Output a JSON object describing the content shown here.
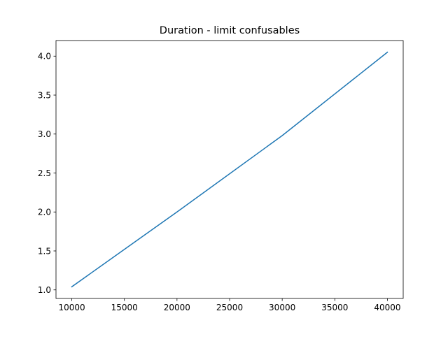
{
  "chart_data": {
    "type": "line",
    "title": "Duration - limit confusables",
    "xlabel": "",
    "ylabel": "",
    "x": [
      10000,
      20000,
      30000,
      40000
    ],
    "series": [
      {
        "values": [
          1.04,
          2.0,
          2.98,
          4.05
        ],
        "color": "#1f77b4"
      }
    ],
    "xlim": [
      8500,
      41500
    ],
    "ylim": [
      0.89,
      4.2
    ],
    "xticks": [
      10000,
      15000,
      20000,
      25000,
      30000,
      35000,
      40000
    ],
    "xtick_labels": [
      "10000",
      "15000",
      "20000",
      "25000",
      "30000",
      "35000",
      "40000"
    ],
    "yticks": [
      1.0,
      1.5,
      2.0,
      2.5,
      3.0,
      3.5,
      4.0
    ],
    "ytick_labels": [
      "1.0",
      "1.5",
      "2.0",
      "2.5",
      "3.0",
      "3.5",
      "4.0"
    ],
    "grid": false,
    "legend": "none"
  }
}
